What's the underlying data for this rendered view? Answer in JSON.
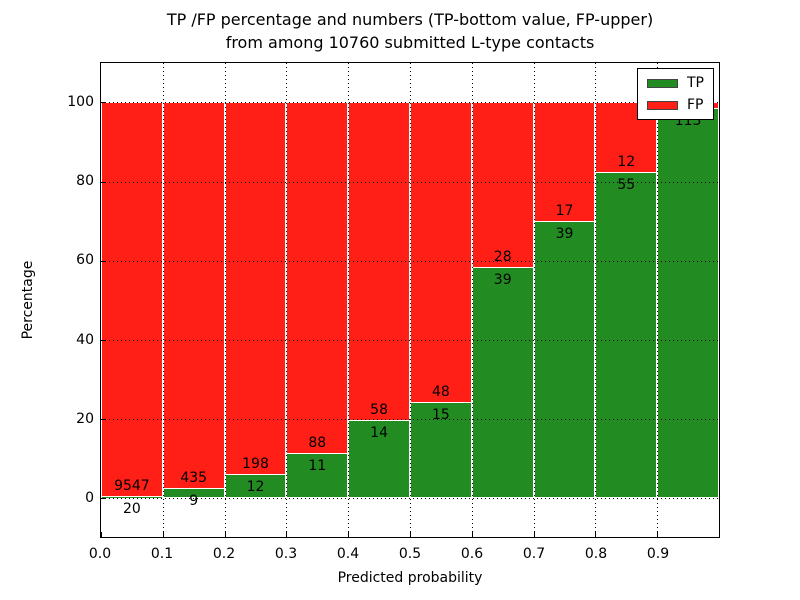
{
  "title": {
    "line1": "TP /FP percentage and numbers (TP-bottom value, FP-upper)",
    "line2": "from among 10760 submitted L-type contacts"
  },
  "axes": {
    "x_label": "Predicted probability",
    "y_label": "Percentage",
    "x_tick_labels": [
      "0.0",
      "0.1",
      "0.2",
      "0.3",
      "0.4",
      "0.5",
      "0.6",
      "0.7",
      "0.8",
      "0.9"
    ],
    "x_tick_values": [
      0.0,
      0.1,
      0.2,
      0.3,
      0.4,
      0.5,
      0.6,
      0.7,
      0.8,
      0.9
    ],
    "y_tick_labels": [
      "0",
      "20",
      "40",
      "60",
      "80",
      "100"
    ],
    "y_tick_values": [
      0,
      20,
      40,
      60,
      80,
      100
    ],
    "x_range": [
      0.0,
      1.0
    ],
    "y_range": [
      -10,
      110
    ]
  },
  "legend": {
    "items": [
      {
        "label": "TP",
        "color": "#228b22"
      },
      {
        "label": "FP",
        "color": "#ff1f17"
      }
    ]
  },
  "chart_data": {
    "type": "bar",
    "stacked": true,
    "bin_width": 0.1,
    "bin_starts": [
      0.0,
      0.1,
      0.2,
      0.3,
      0.4,
      0.5,
      0.6,
      0.7,
      0.8,
      0.9
    ],
    "categories": [
      "0.0-0.1",
      "0.1-0.2",
      "0.2-0.3",
      "0.3-0.4",
      "0.4-0.5",
      "0.5-0.6",
      "0.6-0.7",
      "0.7-0.8",
      "0.8-0.9",
      "0.9-1.0"
    ],
    "series": [
      {
        "name": "TP",
        "color": "#228b22",
        "counts": [
          20,
          9,
          12,
          11,
          14,
          15,
          39,
          39,
          55,
          113
        ],
        "pct": [
          0.21,
          2.03,
          5.71,
          11.11,
          19.44,
          23.81,
          58.21,
          69.64,
          82.09,
          98.26
        ]
      },
      {
        "name": "FP",
        "color": "#ff1f17",
        "counts": [
          9547,
          435,
          198,
          88,
          58,
          48,
          28,
          17,
          12,
          null
        ],
        "pct": [
          99.79,
          97.97,
          94.29,
          88.89,
          80.56,
          76.19,
          41.79,
          30.36,
          17.91,
          1.74
        ]
      }
    ],
    "visible_bar_labels": {
      "tp": [
        "20",
        "9",
        "12",
        "11",
        "14",
        "15",
        "39",
        "39",
        "55",
        "113"
      ],
      "fp": [
        "9547",
        "435",
        "198",
        "88",
        "58",
        "48",
        "28",
        "17",
        "12",
        ""
      ]
    },
    "title": "TP /FP percentage and numbers (TP-bottom value, FP-upper) from among 10760 submitted L-type contacts",
    "xlabel": "Predicted probability",
    "ylabel": "Percentage",
    "xlim": [
      0.0,
      1.0
    ],
    "ylim": [
      -10,
      110
    ],
    "grid": true,
    "grid_style": "dotted",
    "legend_position": "upper right"
  }
}
